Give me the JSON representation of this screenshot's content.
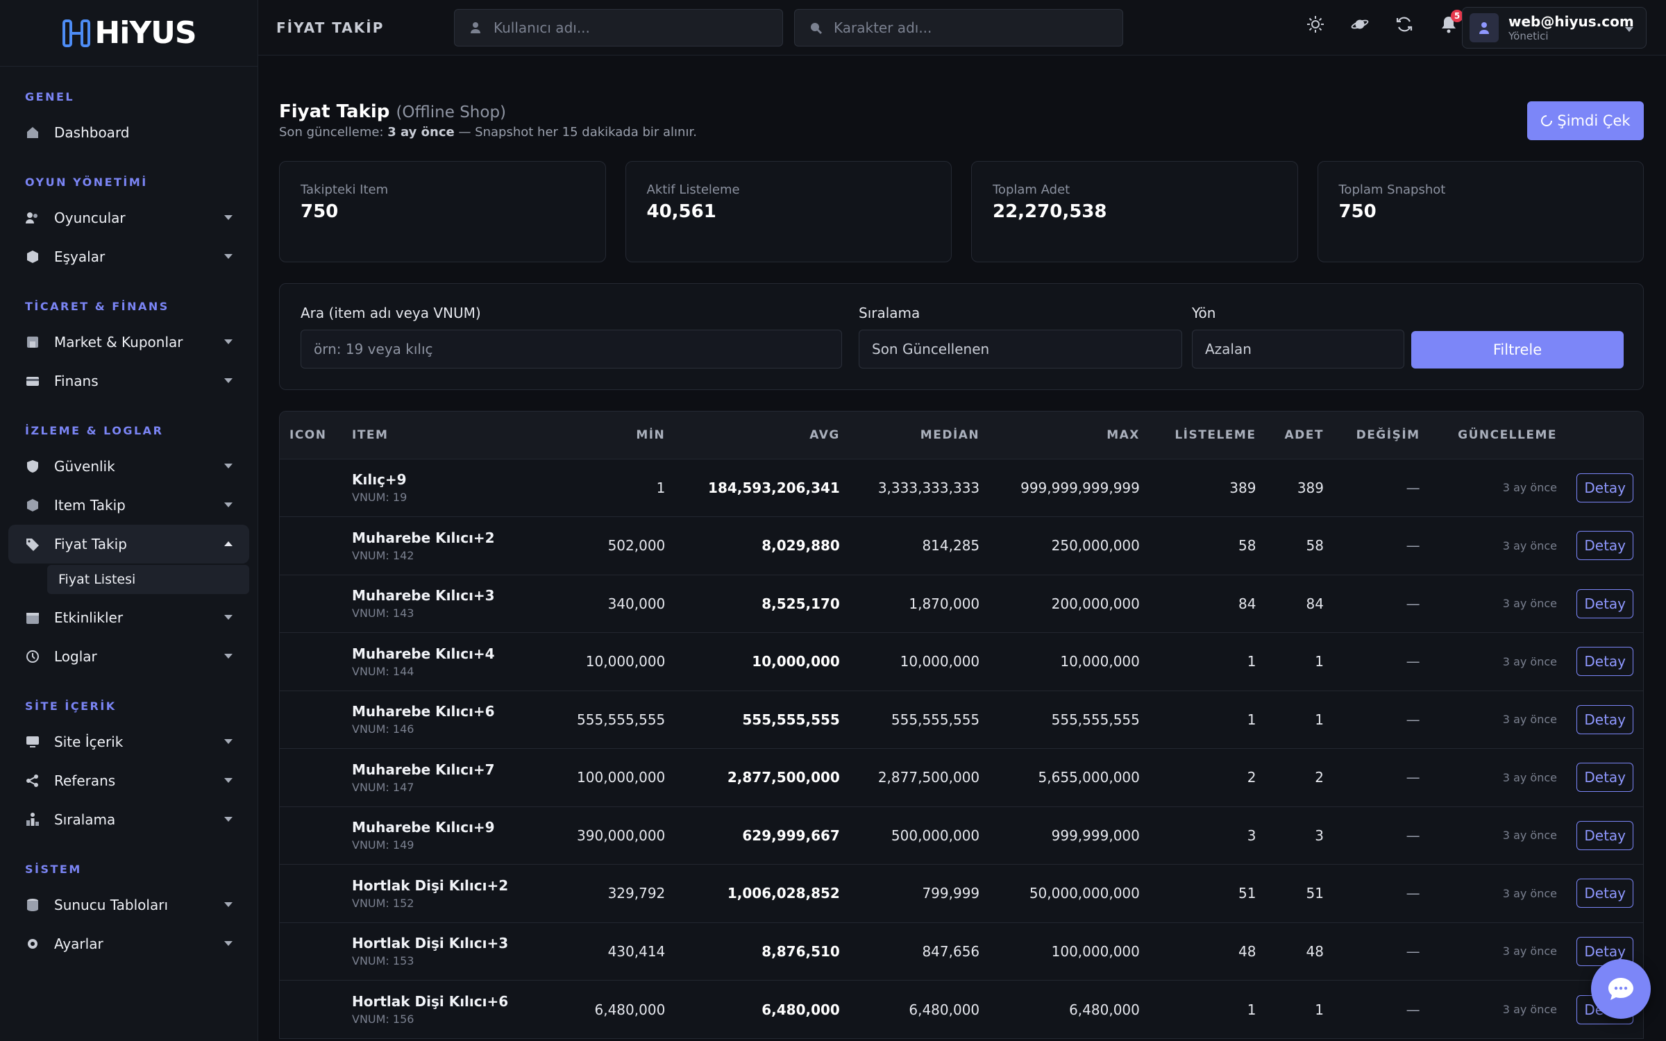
{
  "brand": {
    "name": "HiYUS"
  },
  "sidebar": {
    "sections": [
      {
        "title": "GENEL",
        "items": [
          {
            "label": "Dashboard",
            "icon": "home-icon",
            "expandable": false
          }
        ]
      },
      {
        "title": "OYUN YÖNETİMİ",
        "items": [
          {
            "label": "Oyuncular",
            "icon": "users-icon",
            "expandable": true
          },
          {
            "label": "Eşyalar",
            "icon": "cube-icon",
            "expandable": true
          }
        ]
      },
      {
        "title": "TİCARET & FİNANS",
        "items": [
          {
            "label": "Market & Kuponlar",
            "icon": "store-icon",
            "expandable": true
          },
          {
            "label": "Finans",
            "icon": "card-icon",
            "expandable": true
          }
        ]
      },
      {
        "title": "İZLEME & LOGLAR",
        "items": [
          {
            "label": "Güvenlik",
            "icon": "shield-icon",
            "expandable": true
          },
          {
            "label": "Item Takip",
            "icon": "box-icon",
            "expandable": true
          },
          {
            "label": "Fiyat Takip",
            "icon": "tag-icon",
            "expandable": true,
            "active": true,
            "sub": [
              "Fiyat Listesi"
            ]
          },
          {
            "label": "Etkinlikler",
            "icon": "calendar-icon",
            "expandable": true
          },
          {
            "label": "Loglar",
            "icon": "history-icon",
            "expandable": true
          }
        ]
      },
      {
        "title": "SİTE İÇERİK",
        "items": [
          {
            "label": "Site İçerik",
            "icon": "monitor-icon",
            "expandable": true
          },
          {
            "label": "Referans",
            "icon": "share-icon",
            "expandable": true
          },
          {
            "label": "Sıralama",
            "icon": "ranking-icon",
            "expandable": true
          }
        ]
      },
      {
        "title": "SİSTEM",
        "items": [
          {
            "label": "Sunucu Tabloları",
            "icon": "database-icon",
            "expandable": true
          },
          {
            "label": "Ayarlar",
            "icon": "gear-icon",
            "expandable": true
          }
        ]
      }
    ]
  },
  "topbar": {
    "page_label": "FİYAT TAKİP",
    "user_search_placeholder": "Kullanıcı adı...",
    "char_search_placeholder": "Karakter adı...",
    "notification_count": "5",
    "user": {
      "email": "web@hiyus.com",
      "role": "Yönetici"
    }
  },
  "page": {
    "title": "Fiyat Takip",
    "subtitle": "(Offline Shop)",
    "desc_prefix": "Son güncelleme:",
    "desc_time": "3 ay önce",
    "desc_suffix": "— Snapshot her 15 dakikada bir alınır.",
    "refresh_label": "Şimdi Çek"
  },
  "stats": [
    {
      "label": "Takipteki Item",
      "value": "750"
    },
    {
      "label": "Aktif Listeleme",
      "value": "40,561"
    },
    {
      "label": "Toplam Adet",
      "value": "22,270,538"
    },
    {
      "label": "Toplam Snapshot",
      "value": "750"
    }
  ],
  "filters": {
    "search_label": "Ara (item adı veya VNUM)",
    "search_placeholder": "örn: 19 veya kılıç",
    "sort_label": "Sıralama",
    "sort_value": "Son Güncellenen",
    "dir_label": "Yön",
    "dir_value": "Azalan",
    "button": "Filtrele"
  },
  "table": {
    "headers": [
      "ICON",
      "ITEM",
      "MİN",
      "AVG",
      "MEDİAN",
      "MAX",
      "LİSTELEME",
      "ADET",
      "DEĞİŞİM",
      "GÜNCELLEME",
      ""
    ],
    "action_label": "Detay",
    "rows": [
      {
        "name": "Kılıç+9",
        "vnum": "VNUM: 19",
        "min": "1",
        "avg": "184,593,206,341",
        "median": "3,333,333,333",
        "max": "999,999,999,999",
        "listing": "389",
        "qty": "389",
        "change": "—",
        "updated": "3 ay önce"
      },
      {
        "name": "Muharebe Kılıcı+2",
        "vnum": "VNUM: 142",
        "min": "502,000",
        "avg": "8,029,880",
        "median": "814,285",
        "max": "250,000,000",
        "listing": "58",
        "qty": "58",
        "change": "—",
        "updated": "3 ay önce"
      },
      {
        "name": "Muharebe Kılıcı+3",
        "vnum": "VNUM: 143",
        "min": "340,000",
        "avg": "8,525,170",
        "median": "1,870,000",
        "max": "200,000,000",
        "listing": "84",
        "qty": "84",
        "change": "—",
        "updated": "3 ay önce"
      },
      {
        "name": "Muharebe Kılıcı+4",
        "vnum": "VNUM: 144",
        "min": "10,000,000",
        "avg": "10,000,000",
        "median": "10,000,000",
        "max": "10,000,000",
        "listing": "1",
        "qty": "1",
        "change": "—",
        "updated": "3 ay önce"
      },
      {
        "name": "Muharebe Kılıcı+6",
        "vnum": "VNUM: 146",
        "min": "555,555,555",
        "avg": "555,555,555",
        "median": "555,555,555",
        "max": "555,555,555",
        "listing": "1",
        "qty": "1",
        "change": "—",
        "updated": "3 ay önce"
      },
      {
        "name": "Muharebe Kılıcı+7",
        "vnum": "VNUM: 147",
        "min": "100,000,000",
        "avg": "2,877,500,000",
        "median": "2,877,500,000",
        "max": "5,655,000,000",
        "listing": "2",
        "qty": "2",
        "change": "—",
        "updated": "3 ay önce"
      },
      {
        "name": "Muharebe Kılıcı+9",
        "vnum": "VNUM: 149",
        "min": "390,000,000",
        "avg": "629,999,667",
        "median": "500,000,000",
        "max": "999,999,000",
        "listing": "3",
        "qty": "3",
        "change": "—",
        "updated": "3 ay önce"
      },
      {
        "name": "Hortlak Dişi Kılıcı+2",
        "vnum": "VNUM: 152",
        "min": "329,792",
        "avg": "1,006,028,852",
        "median": "799,999",
        "max": "50,000,000,000",
        "listing": "51",
        "qty": "51",
        "change": "—",
        "updated": "3 ay önce"
      },
      {
        "name": "Hortlak Dişi Kılıcı+3",
        "vnum": "VNUM: 153",
        "min": "430,414",
        "avg": "8,876,510",
        "median": "847,656",
        "max": "100,000,000",
        "listing": "48",
        "qty": "48",
        "change": "—",
        "updated": "3 ay önce"
      },
      {
        "name": "Hortlak Dişi Kılıcı+6",
        "vnum": "VNUM: 156",
        "min": "6,480,000",
        "avg": "6,480,000",
        "median": "6,480,000",
        "max": "6,480,000",
        "listing": "1",
        "qty": "1",
        "change": "—",
        "updated": "3 ay önce"
      }
    ]
  },
  "colors": {
    "accent": "#7c86f8",
    "background": "#0d0f14",
    "panel": "#11141a",
    "badge": "#e5384c"
  }
}
